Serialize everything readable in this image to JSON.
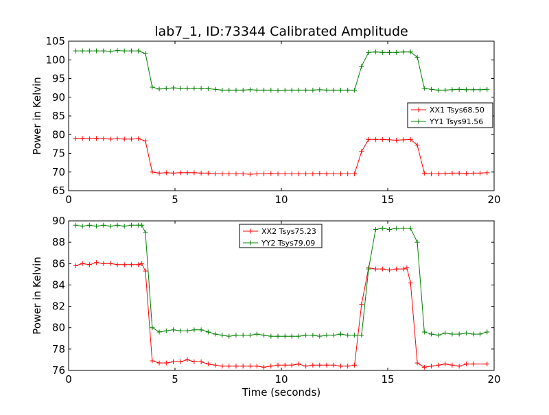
{
  "figure_title": "lab7_1, ID:73344 Calibrated Amplitude",
  "colors": {
    "XX": "#ff0000",
    "YY": "#008000"
  },
  "chart_data": [
    {
      "type": "line",
      "title": "lab7_1, ID:73344 Calibrated Amplitude",
      "xlabel": "",
      "ylabel": "Power in Kelvin",
      "xlim": [
        0,
        20
      ],
      "ylim": [
        65,
        105
      ],
      "x_ticks": [
        0,
        5,
        10,
        15,
        20
      ],
      "y_ticks": [
        65,
        70,
        75,
        80,
        85,
        90,
        95,
        100,
        105
      ],
      "grid": false,
      "legend_position": "right",
      "marker": "+",
      "x": [
        0.33,
        0.65,
        0.98,
        1.31,
        1.64,
        1.97,
        2.29,
        2.62,
        2.95,
        3.28,
        3.61,
        3.93,
        4.26,
        4.59,
        4.92,
        5.25,
        5.58,
        5.9,
        6.23,
        6.56,
        6.89,
        7.22,
        7.54,
        7.87,
        8.2,
        8.53,
        8.85,
        9.18,
        9.51,
        9.84,
        10.17,
        10.49,
        10.82,
        11.15,
        11.48,
        11.8,
        12.13,
        12.46,
        12.79,
        13.12,
        13.44,
        13.77,
        14.1,
        14.43,
        14.75,
        15.08,
        15.41,
        15.74,
        16.07,
        16.39,
        16.72,
        17.05,
        17.38,
        17.7,
        18.03,
        18.36,
        18.69,
        19.02,
        19.34,
        19.67
      ],
      "series": [
        {
          "name": "XX1 Tsys68.50",
          "color": "#ff0000",
          "values": [
            79,
            79,
            78.9,
            79,
            78.9,
            78.8,
            78.9,
            78.8,
            78.8,
            78.9,
            78.3,
            70,
            69.7,
            69.8,
            69.7,
            69.8,
            69.8,
            69.8,
            69.7,
            69.7,
            69.5,
            69.5,
            69.5,
            69.5,
            69.5,
            69.4,
            69.5,
            69.5,
            69.6,
            69.5,
            69.5,
            69.5,
            69.5,
            69.5,
            69.5,
            69.6,
            69.5,
            69.5,
            69.5,
            69.5,
            69.5,
            75.5,
            78.7,
            78.7,
            78.7,
            78.6,
            78.5,
            78.6,
            78.7,
            77.2,
            69.7,
            69.5,
            69.5,
            69.6,
            69.7,
            69.7,
            69.6,
            69.7,
            69.7,
            69.8
          ]
        },
        {
          "name": "YY1 Tsys91.56",
          "color": "#008000",
          "values": [
            102.4,
            102.4,
            102.4,
            102.4,
            102.4,
            102.3,
            102.5,
            102.4,
            102.4,
            102.4,
            101.7,
            92.7,
            92.2,
            92.4,
            92.5,
            92.4,
            92.4,
            92.4,
            92.4,
            92.3,
            92.1,
            91.9,
            91.9,
            91.9,
            91.9,
            92,
            91.9,
            91.9,
            91.9,
            91.8,
            91.9,
            91.9,
            91.9,
            91.9,
            91.9,
            92,
            91.9,
            91.9,
            91.9,
            91.9,
            91.9,
            98.3,
            102,
            102.1,
            102,
            102,
            102,
            102.1,
            102.1,
            100.7,
            92.4,
            92.1,
            91.9,
            91.9,
            92,
            92.1,
            92,
            92,
            92,
            92.1
          ]
        }
      ]
    },
    {
      "type": "line",
      "title": "",
      "xlabel": "Time (seconds)",
      "ylabel": "Power in Kelvin",
      "xlim": [
        0,
        20
      ],
      "ylim": [
        76,
        90
      ],
      "x_ticks": [
        0,
        5,
        10,
        15,
        20
      ],
      "y_ticks": [
        76,
        78,
        80,
        82,
        84,
        86,
        88,
        90
      ],
      "grid": false,
      "legend_position": "top-center",
      "marker": "+",
      "x": [
        0.33,
        0.65,
        0.98,
        1.31,
        1.64,
        1.97,
        2.29,
        2.62,
        2.95,
        3.28,
        3.61,
        3.93,
        4.26,
        4.59,
        4.92,
        5.25,
        5.58,
        5.9,
        6.23,
        6.56,
        6.89,
        7.22,
        7.54,
        7.87,
        8.2,
        8.53,
        8.85,
        9.18,
        9.51,
        9.84,
        10.17,
        10.49,
        10.82,
        11.15,
        11.48,
        11.8,
        12.13,
        12.46,
        12.79,
        13.12,
        13.44,
        13.77,
        14.1,
        14.43,
        14.75,
        15.08,
        15.41,
        15.74,
        16.07,
        16.39,
        16.72,
        17.05,
        17.38,
        17.7,
        18.03,
        18.36,
        18.69,
        19.02,
        19.34,
        19.67
      ],
      "series": [
        {
          "name": "XX2 Tsys75.23",
          "color": "#ff0000",
          "values": [
            85.8,
            86,
            85.9,
            86.1,
            86,
            86,
            85.9,
            85.9,
            85.9,
            85.9,
            86,
            85.3,
            76.9,
            76.7,
            76.7,
            76.8,
            76.8,
            77,
            76.8,
            76.8,
            76.6,
            76.5,
            76.4,
            76.4,
            76.4,
            76.4,
            76.4,
            76.4,
            76.3,
            76.4,
            76.5,
            76.5,
            76.5,
            76.6,
            76.4,
            76.5,
            76.5,
            76.5,
            76.5,
            76.4,
            76.4,
            76.5,
            82.2,
            85.6,
            85.5,
            85.5,
            85.4,
            85.5,
            85.5,
            85.6,
            84.2,
            76.7,
            76.3,
            76.4,
            76.5,
            76.6,
            76.5,
            76.4,
            76.6,
            76.6,
            76.6
          ],
          "x": [
            0.33,
            0.65,
            0.98,
            1.31,
            1.64,
            1.97,
            2.29,
            2.62,
            2.95,
            3.28,
            3.44,
            3.61,
            3.93,
            4.26,
            4.59,
            4.92,
            5.25,
            5.58,
            5.9,
            6.23,
            6.56,
            6.89,
            7.22,
            7.54,
            7.87,
            8.2,
            8.53,
            8.85,
            9.18,
            9.51,
            9.84,
            10.17,
            10.49,
            10.82,
            11.15,
            11.48,
            11.8,
            12.13,
            12.46,
            12.79,
            13.12,
            13.44,
            13.77,
            14.1,
            14.43,
            14.75,
            15.08,
            15.41,
            15.74,
            15.9,
            16.07,
            16.39,
            16.72,
            17.05,
            17.38,
            17.7,
            18.03,
            18.36,
            18.69,
            19.02,
            19.67
          ]
        },
        {
          "name": "YY2 Tsys79.09",
          "color": "#008000",
          "values": [
            89.6,
            89.5,
            89.6,
            89.5,
            89.6,
            89.5,
            89.6,
            89.5,
            89.6,
            89.6,
            89.6,
            88.9,
            80,
            79.6,
            79.7,
            79.8,
            79.7,
            79.7,
            79.8,
            79.8,
            79.6,
            79.4,
            79.3,
            79.2,
            79.3,
            79.3,
            79.3,
            79.4,
            79.3,
            79.2,
            79.2,
            79.2,
            79.2,
            79.2,
            79.3,
            79.3,
            79.2,
            79.3,
            79.3,
            79.4,
            79.3,
            79.3,
            79.3,
            85.5,
            89.2,
            89.3,
            89.2,
            89.3,
            89.3,
            89.3,
            88,
            79.6,
            79.4,
            79.3,
            79.5,
            79.4,
            79.4,
            79.5,
            79.4,
            79.4,
            79.6
          ],
          "x": [
            0.33,
            0.65,
            0.98,
            1.31,
            1.64,
            1.97,
            2.29,
            2.62,
            2.95,
            3.28,
            3.44,
            3.61,
            3.93,
            4.26,
            4.59,
            4.92,
            5.25,
            5.58,
            5.9,
            6.23,
            6.56,
            6.89,
            7.22,
            7.54,
            7.87,
            8.2,
            8.53,
            8.85,
            9.18,
            9.51,
            9.84,
            10.17,
            10.49,
            10.82,
            11.15,
            11.48,
            11.8,
            12.13,
            12.46,
            12.79,
            13.12,
            13.44,
            13.77,
            14.1,
            14.43,
            14.75,
            15.08,
            15.41,
            15.74,
            16.07,
            16.39,
            16.72,
            17.05,
            17.38,
            17.7,
            18.03,
            18.36,
            18.69,
            19.02,
            19.34,
            19.67
          ]
        }
      ]
    }
  ]
}
